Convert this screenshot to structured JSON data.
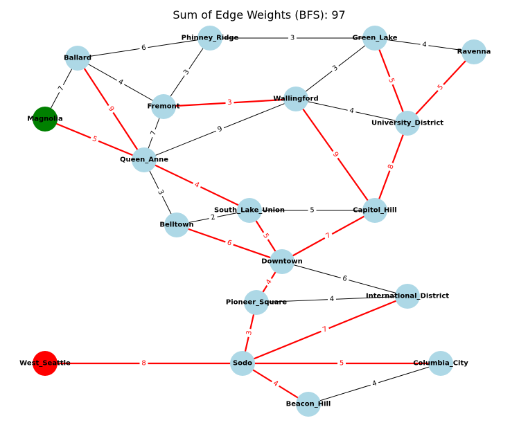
{
  "title": "Sum of Edge Weights (BFS): 97",
  "colors": {
    "node_default": "#add8e6",
    "node_start": "#008000",
    "node_target": "#ff0000",
    "edge_default": "#000000",
    "edge_highlight": "#ff0000",
    "label_bg": "#ffffff"
  },
  "nodes": [
    {
      "id": "Ballard",
      "label": "Ballard",
      "role": "default"
    },
    {
      "id": "Phinney_Ridge",
      "label": "Phinney_Ridge",
      "role": "default"
    },
    {
      "id": "Green_Lake",
      "label": "Green_Lake",
      "role": "default"
    },
    {
      "id": "Ravenna",
      "label": "Ravenna",
      "role": "default"
    },
    {
      "id": "Magnolia",
      "label": "Magnolia",
      "role": "start"
    },
    {
      "id": "Fremont",
      "label": "Fremont",
      "role": "default"
    },
    {
      "id": "Wallingford",
      "label": "Wallingford",
      "role": "default"
    },
    {
      "id": "University_District",
      "label": "University_District",
      "role": "default"
    },
    {
      "id": "Queen_Anne",
      "label": "Queen_Anne",
      "role": "default"
    },
    {
      "id": "South_Lake_Union",
      "label": "South_Lake_Union",
      "role": "default"
    },
    {
      "id": "Capitol_Hill",
      "label": "Capitol_Hill",
      "role": "default"
    },
    {
      "id": "Belltown",
      "label": "Belltown",
      "role": "default"
    },
    {
      "id": "Downtown",
      "label": "Downtown",
      "role": "default"
    },
    {
      "id": "International_District",
      "label": "International_District",
      "role": "default"
    },
    {
      "id": "Pioneer_Square",
      "label": "Pioneer_Square",
      "role": "default"
    },
    {
      "id": "West_Seattle",
      "label": "West_Seattle",
      "role": "target"
    },
    {
      "id": "Sodo",
      "label": "Sodo",
      "role": "default"
    },
    {
      "id": "Columbia_City",
      "label": "Columbia_City",
      "role": "default"
    },
    {
      "id": "Beacon_Hill",
      "label": "Beacon_Hill",
      "role": "default"
    }
  ],
  "edges": [
    {
      "source": "Ballard",
      "target": "Phinney_Ridge",
      "weight": "6",
      "highlight": false
    },
    {
      "source": "Ballard",
      "target": "Fremont",
      "weight": "4",
      "highlight": false
    },
    {
      "source": "Ballard",
      "target": "Magnolia",
      "weight": "7",
      "highlight": false
    },
    {
      "source": "Ballard",
      "target": "Queen_Anne",
      "weight": "9",
      "highlight": true
    },
    {
      "source": "Phinney_Ridge",
      "target": "Green_Lake",
      "weight": "3",
      "highlight": false
    },
    {
      "source": "Phinney_Ridge",
      "target": "Fremont",
      "weight": "3",
      "highlight": false
    },
    {
      "source": "Green_Lake",
      "target": "Ravenna",
      "weight": "4",
      "highlight": false
    },
    {
      "source": "Green_Lake",
      "target": "Wallingford",
      "weight": "3",
      "highlight": false
    },
    {
      "source": "Green_Lake",
      "target": "University_District",
      "weight": "5",
      "highlight": true
    },
    {
      "source": "Ravenna",
      "target": "University_District",
      "weight": "5",
      "highlight": true
    },
    {
      "source": "Fremont",
      "target": "Wallingford",
      "weight": "3",
      "highlight": true
    },
    {
      "source": "Fremont",
      "target": "Queen_Anne",
      "weight": "7",
      "highlight": false
    },
    {
      "source": "Wallingford",
      "target": "University_District",
      "weight": "4",
      "highlight": false
    },
    {
      "source": "Wallingford",
      "target": "Queen_Anne",
      "weight": "9",
      "highlight": false
    },
    {
      "source": "Wallingford",
      "target": "Capitol_Hill",
      "weight": "9",
      "highlight": true
    },
    {
      "source": "University_District",
      "target": "Capitol_Hill",
      "weight": "8",
      "highlight": true
    },
    {
      "source": "Magnolia",
      "target": "Queen_Anne",
      "weight": "5",
      "highlight": true
    },
    {
      "source": "Queen_Anne",
      "target": "South_Lake_Union",
      "weight": "4",
      "highlight": true
    },
    {
      "source": "Queen_Anne",
      "target": "Belltown",
      "weight": "3",
      "highlight": false
    },
    {
      "source": "South_Lake_Union",
      "target": "Capitol_Hill",
      "weight": "5",
      "highlight": false
    },
    {
      "source": "South_Lake_Union",
      "target": "Belltown",
      "weight": "2",
      "highlight": false
    },
    {
      "source": "South_Lake_Union",
      "target": "Downtown",
      "weight": "5",
      "highlight": true
    },
    {
      "source": "Capitol_Hill",
      "target": "Downtown",
      "weight": "7",
      "highlight": true
    },
    {
      "source": "Belltown",
      "target": "Downtown",
      "weight": "6",
      "highlight": true
    },
    {
      "source": "Downtown",
      "target": "International_District",
      "weight": "6",
      "highlight": false
    },
    {
      "source": "Downtown",
      "target": "Pioneer_Square",
      "weight": "4",
      "highlight": true
    },
    {
      "source": "Pioneer_Square",
      "target": "International_District",
      "weight": "4",
      "highlight": false
    },
    {
      "source": "Pioneer_Square",
      "target": "Sodo",
      "weight": "3",
      "highlight": true
    },
    {
      "source": "International_District",
      "target": "Sodo",
      "weight": "7",
      "highlight": true
    },
    {
      "source": "West_Seattle",
      "target": "Sodo",
      "weight": "8",
      "highlight": true
    },
    {
      "source": "Sodo",
      "target": "Columbia_City",
      "weight": "5",
      "highlight": true
    },
    {
      "source": "Sodo",
      "target": "Beacon_Hill",
      "weight": "4",
      "highlight": true
    },
    {
      "source": "Beacon_Hill",
      "target": "Columbia_City",
      "weight": "4",
      "highlight": false
    }
  ]
}
